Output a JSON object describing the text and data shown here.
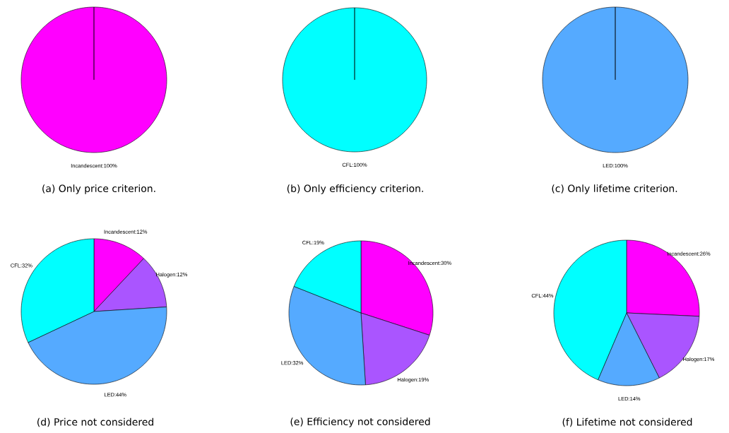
{
  "chart_data": [
    {
      "type": "pie",
      "title": "(a) Only price criterion.",
      "categories": [
        "Incandescent:100%"
      ],
      "values": [
        100
      ],
      "colors": [
        "#ff00ff"
      ]
    },
    {
      "type": "pie",
      "title": "(b) Only efficiency criterion.",
      "categories": [
        "CFL:100%"
      ],
      "values": [
        100
      ],
      "colors": [
        "#00ffff"
      ]
    },
    {
      "type": "pie",
      "title": "(c) Only lifetime criterion.",
      "categories": [
        "LED:100%"
      ],
      "values": [
        100
      ],
      "colors": [
        "#55aaff"
      ]
    },
    {
      "type": "pie",
      "title": "(d) Price not considered",
      "categories": [
        "Incandescent:12%",
        "Halogen:12%",
        "LED:44%",
        "CFL:32%"
      ],
      "values": [
        12,
        12,
        44,
        32
      ],
      "colors": [
        "#ff00ff",
        "#aa55ff",
        "#55aaff",
        "#00ffff"
      ]
    },
    {
      "type": "pie",
      "title": "(e) Efficiency not considered",
      "categories": [
        "Incandescent:30%",
        "Halogen:19%",
        "LED:32%",
        "CFL:19%"
      ],
      "values": [
        30,
        19,
        32,
        19
      ],
      "colors": [
        "#ff00ff",
        "#aa55ff",
        "#55aaff",
        "#00ffff"
      ]
    },
    {
      "type": "pie",
      "title": "(f) Lifetime not considered",
      "categories": [
        "Incandescent:26%",
        "Halogen:17%",
        "LED:14%",
        "CFL:44%"
      ],
      "values": [
        26,
        17,
        14,
        44
      ],
      "colors": [
        "#ff00ff",
        "#aa55ff",
        "#55aaff",
        "#00ffff"
      ]
    }
  ]
}
